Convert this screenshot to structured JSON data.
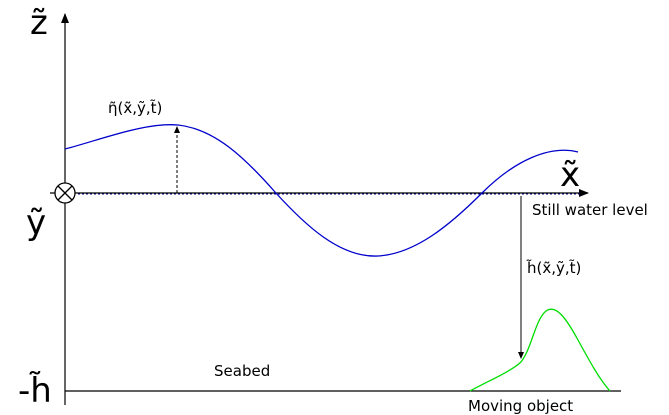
{
  "labels": {
    "z_axis": "z̃",
    "x_axis": "x̃",
    "y_axis": "ỹ",
    "depth_axis": "-h̃",
    "eta": "η̃(x̃,ỹ,t̃)",
    "h": "h̃(x̃,ỹ,t̃)",
    "still_water": "Still water level",
    "seabed": "Seabed",
    "moving_object": "Moving object"
  },
  "colors": {
    "surface": "#0000cc",
    "object": "#00dd00",
    "axes": "#000000",
    "still_water": "#000080"
  }
}
